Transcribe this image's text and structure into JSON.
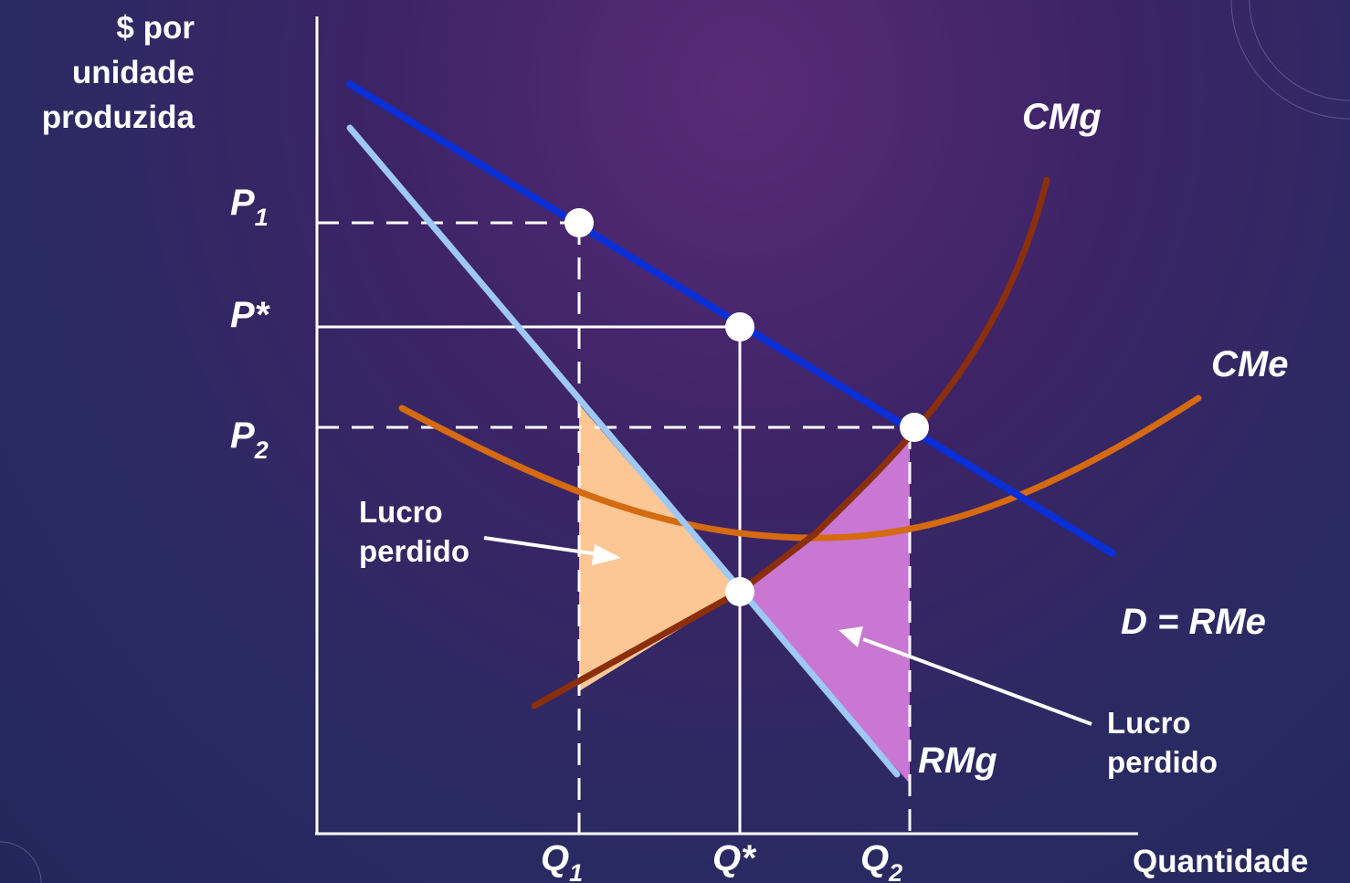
{
  "y_axis_label": [
    "$ por",
    "unidade",
    "produzida"
  ],
  "x_axis_label": "Quantidade",
  "price_labels": {
    "p1": {
      "main": "P",
      "sub": "1"
    },
    "pstar": {
      "main": "P*",
      "sub": ""
    },
    "p2": {
      "main": "P",
      "sub": "2"
    }
  },
  "quantity_labels": {
    "q1": {
      "main": "Q",
      "sub": "1"
    },
    "qstar": {
      "main": "Q*",
      "sub": ""
    },
    "q2": {
      "main": "Q",
      "sub": "2"
    }
  },
  "curve_labels": {
    "cmg": "CMg",
    "cme": "CMe",
    "demand": "D = RMe",
    "rmg": "RMg"
  },
  "annotations": {
    "left": [
      "Lucro",
      "perdido"
    ],
    "right": [
      "Lucro",
      "perdido"
    ]
  },
  "colors": {
    "demand": "#0a2fd6",
    "rmg": "#9ec8f5",
    "cmg": "#8a2e0c",
    "cme": "#d56a10",
    "left_area": "#fcc795",
    "right_area": "#c977d2",
    "axis": "#ffffff"
  }
}
